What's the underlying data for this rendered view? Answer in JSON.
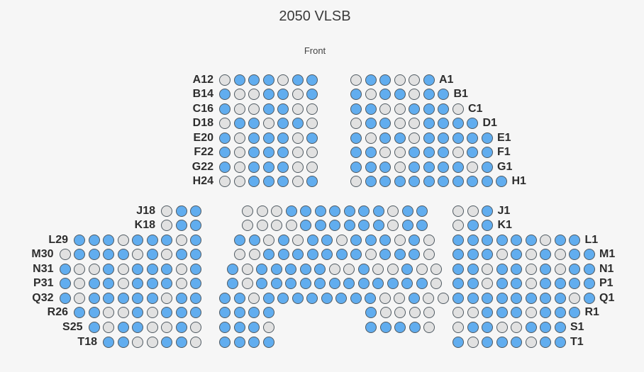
{
  "title": "2050 VLSB",
  "stage_label": "Front",
  "colors": {
    "available": "#61adef",
    "taken": "#e1e1e1",
    "outline": "#505a62"
  },
  "blocks": [
    {
      "id": "upper-left",
      "x0": 329,
      "side": "right",
      "rows": [
        {
          "label": "A12",
          "pattern": "gbbbgbb"
        },
        {
          "label": "B14",
          "pattern": "bggbbgb"
        },
        {
          "label": "C16",
          "pattern": "bggbbgg"
        },
        {
          "label": "D18",
          "pattern": "gbbgbbg"
        },
        {
          "label": "E20",
          "pattern": "bgbbbgb"
        },
        {
          "label": "F22",
          "pattern": "bgbbbgg"
        },
        {
          "label": "G22",
          "pattern": "bgbbbgg"
        },
        {
          "label": "H24",
          "pattern": "ggbbbgb"
        }
      ]
    },
    {
      "id": "upper-right",
      "x0": 494,
      "side": "left",
      "rows": [
        {
          "label": "A1",
          "pattern": "gbbggb"
        },
        {
          "label": "B1",
          "pattern": "bgbbgbb"
        },
        {
          "label": "C1",
          "pattern": "bbggbbbg"
        },
        {
          "label": "D1",
          "pattern": "gbbggbbbb"
        },
        {
          "label": "E1",
          "pattern": "bgbbgbbbbb"
        },
        {
          "label": "F1",
          "pattern": "bbggbbbgbb"
        },
        {
          "label": "G1",
          "pattern": "bbbgbbbbgb"
        },
        {
          "label": "H1",
          "pattern": "gbbbbbbbbbb"
        }
      ]
    },
    {
      "id": "lower-left",
      "x0": 268,
      "side": "right",
      "rows": [
        {
          "label": "J18",
          "pattern": "gbb"
        },
        {
          "label": "K18",
          "pattern": "gbb"
        },
        {
          "label": "L29",
          "pattern": "bbbgbbbgb"
        },
        {
          "label": "M30",
          "pattern": "gbbbbgbgbb"
        },
        {
          "label": "N31",
          "pattern": "bggbgbbbgb"
        },
        {
          "label": "P31",
          "pattern": "bgbbgbbbgb"
        },
        {
          "label": "Q32",
          "pattern": "bgbbbbbgbb"
        },
        {
          "label": "R26",
          "pattern": "bbggbgbbb"
        },
        {
          "label": "S25",
          "pattern": "bgbbggbg"
        },
        {
          "label": "T18",
          "pattern": "bbggbbg"
        }
      ]
    },
    {
      "id": "center",
      "rows": [
        {
          "x0": 341,
          "pattern": "gggbbbbbbbgbb"
        },
        {
          "x0": 341,
          "pattern": "ggggbbbbbbgbb"
        },
        {
          "x0": 330,
          "pattern": "bbgbgbbgbbbgbg"
        },
        {
          "x0": 330,
          "pattern": "ggbbbbbbbgbbbg"
        },
        {
          "x0": 320,
          "pattern": "bgbbbbbggbggbgg"
        },
        {
          "x0": 320,
          "pattern": "bgbbbbbbbbbbbbg"
        },
        {
          "x0": 309,
          "pattern": "bbgbbbbbbbbggbgg"
        },
        {
          "x0": 309,
          "pattern": "bbbb",
          "x1": 515,
          "pattern2": "bgggg"
        },
        {
          "x0": 309,
          "pattern": "bbbg",
          "x1": 515,
          "pattern2": "bbbbg"
        },
        {
          "x0": 309,
          "pattern": "bbbb"
        }
      ]
    },
    {
      "id": "lower-right",
      "x0": 638,
      "side": "left",
      "rows": [
        {
          "label": "J1",
          "pattern": "ggb"
        },
        {
          "label": "K1",
          "pattern": "gbb"
        },
        {
          "label": "L1",
          "pattern": "bbbbbbgbb"
        },
        {
          "label": "M1",
          "pattern": "bbbgbgbgbb"
        },
        {
          "label": "N1",
          "pattern": "bbgbbgbgbb"
        },
        {
          "label": "P1",
          "pattern": "bbgbbgbbbb"
        },
        {
          "label": "Q1",
          "pattern": "bbbbbbbbgb"
        },
        {
          "label": "R1",
          "pattern": "ggbbbgbbb"
        },
        {
          "label": "S1",
          "pattern": "gbbggbbb"
        },
        {
          "label": "T1",
          "pattern": "bgbbbgbb"
        }
      ]
    }
  ]
}
